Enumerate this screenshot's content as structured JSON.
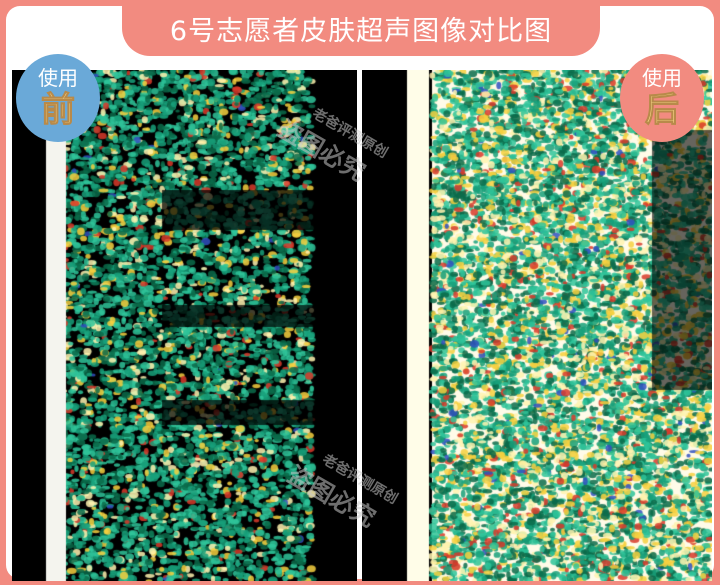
{
  "title": "6号志愿者皮肤超声图像对比图",
  "badges": {
    "before": {
      "top": "使用",
      "bottom": "前",
      "color": "#6aa9d8"
    },
    "after": {
      "top": "使用",
      "bottom": "后",
      "color": "#f28b80"
    }
  },
  "watermark": {
    "line1": "老爸评测原创",
    "line2": "盗图必究"
  },
  "colors": {
    "frame": "#f28b80",
    "panel_bg": "#000000"
  }
}
